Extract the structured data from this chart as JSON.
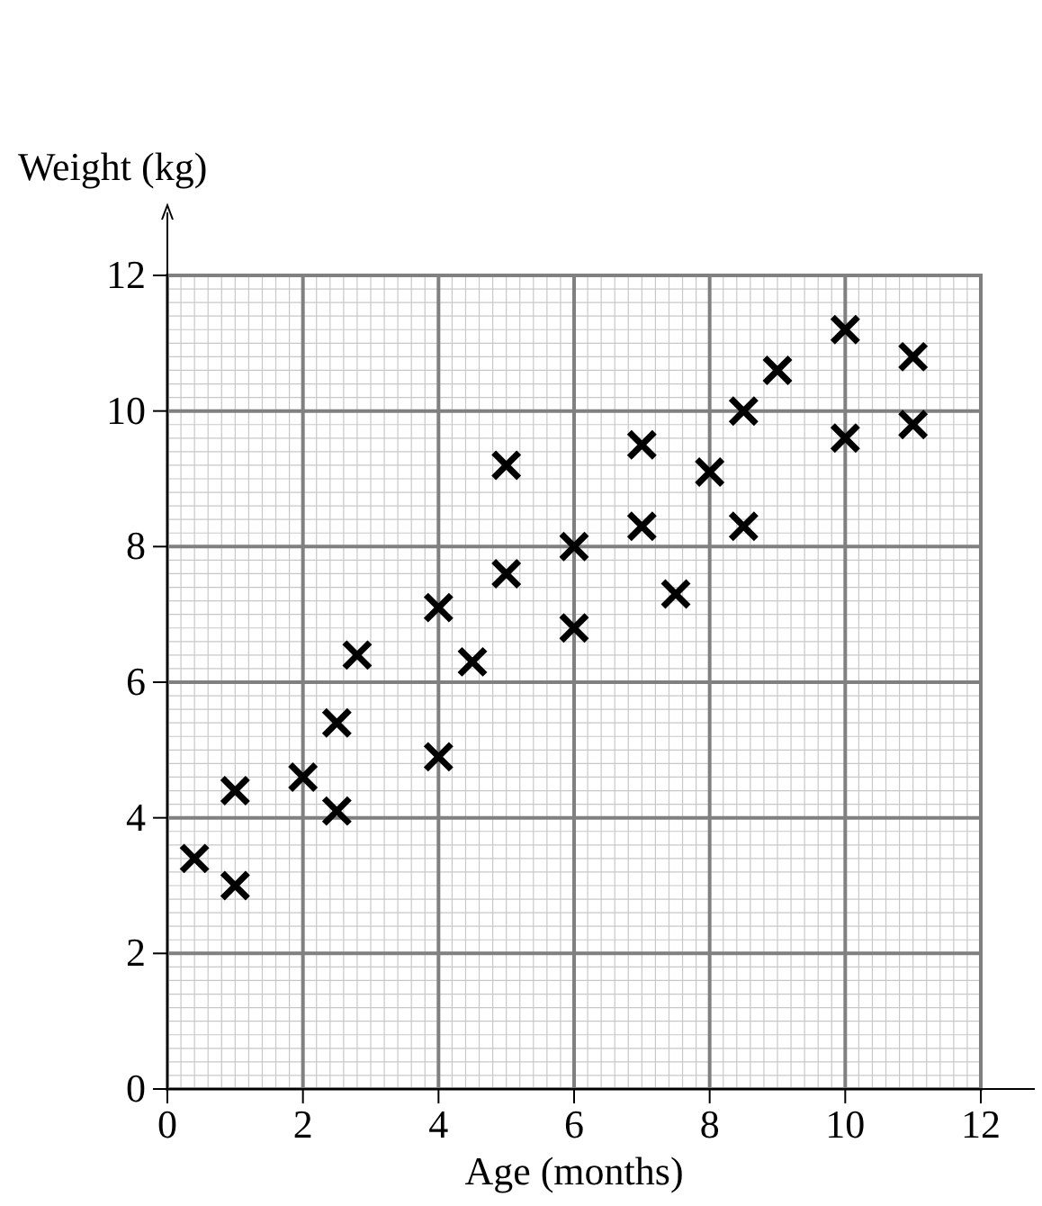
{
  "chart_data": {
    "type": "scatter",
    "xlabel": "Age (months)",
    "ylabel": "Weight (kg)",
    "xlim": [
      0,
      12
    ],
    "ylim": [
      0,
      12
    ],
    "xticks": [
      0,
      2,
      4,
      6,
      8,
      10,
      12
    ],
    "yticks": [
      0,
      2,
      4,
      6,
      8,
      10,
      12
    ],
    "grid": true,
    "marker": "cross",
    "series": [
      {
        "color": "#000000",
        "x": [
          0.4,
          1,
          1,
          2,
          2.5,
          2.5,
          2.8,
          4,
          4,
          4.5,
          5,
          5,
          6,
          6,
          7,
          7,
          7.5,
          8,
          8.5,
          8.5,
          9,
          10,
          10,
          11,
          11
        ],
        "values": [
          3.4,
          3,
          4.4,
          4.6,
          4.1,
          5.4,
          6.4,
          4.9,
          7.1,
          6.3,
          7.6,
          9.2,
          6.8,
          8,
          8.3,
          9.5,
          7.3,
          9.1,
          8.3,
          10,
          10.6,
          9.6,
          11.2,
          9.8,
          10.8
        ]
      }
    ]
  }
}
